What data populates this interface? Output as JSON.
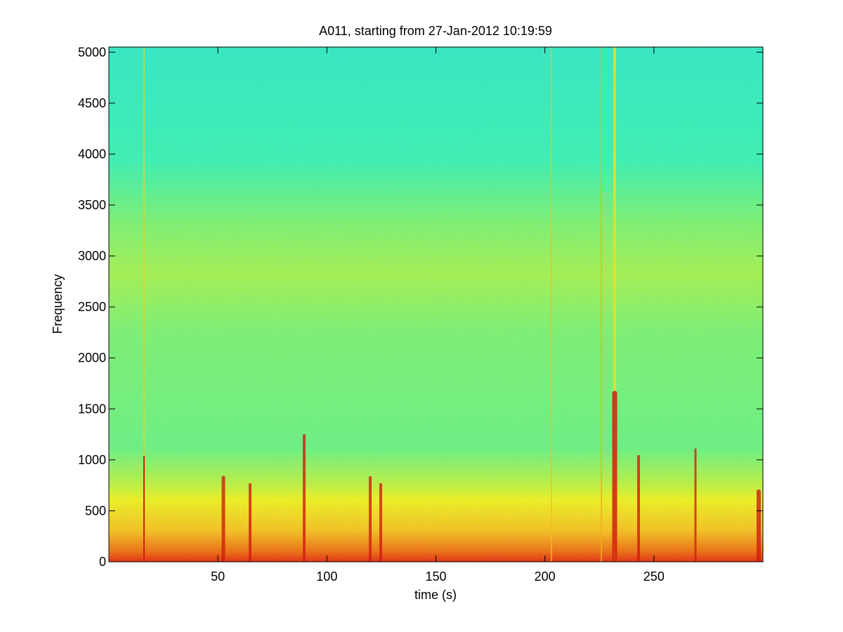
{
  "chart_data": {
    "type": "spectrogram",
    "title": "A011, starting from 27-Jan-2012 10:19:59",
    "xlabel": "time (s)",
    "ylabel": "Frequency",
    "xlim": [
      0,
      300
    ],
    "xticks": [
      50,
      100,
      150,
      200,
      250
    ],
    "ylim": [
      0,
      5050
    ],
    "yticks": [
      0,
      500,
      1000,
      1500,
      2000,
      2500,
      3000,
      3500,
      4000,
      4500,
      5000
    ]
  }
}
